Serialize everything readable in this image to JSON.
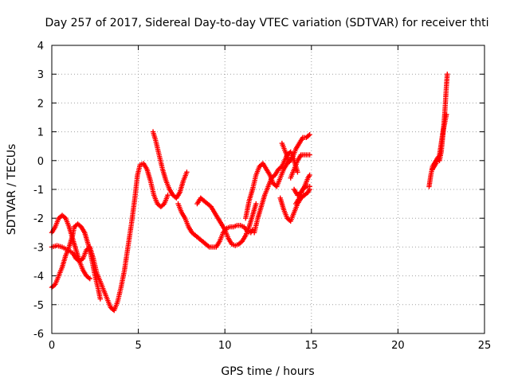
{
  "chart_data": {
    "type": "scatter",
    "title": "Day 257 of 2017, Sidereal Day-to-day VTEC variation (SDTVAR) for receiver thti",
    "xlabel": "GPS time / hours",
    "ylabel": "SDTVAR / TECUs",
    "xlim": [
      0,
      25
    ],
    "ylim": [
      -6,
      4
    ],
    "xticks": [
      0,
      5,
      10,
      15,
      20,
      25
    ],
    "yticks": [
      -6,
      -5,
      -4,
      -3,
      -2,
      -1,
      0,
      1,
      2,
      3,
      4
    ],
    "grid": true,
    "marker": "plus",
    "color": "#ff0000",
    "series": [
      {
        "points": [
          [
            0.0,
            -4.4
          ],
          [
            0.2,
            -4.3
          ],
          [
            0.4,
            -4.0
          ],
          [
            0.6,
            -3.7
          ],
          [
            0.8,
            -3.3
          ],
          [
            1.0,
            -3.0
          ],
          [
            1.2,
            -2.6
          ],
          [
            1.3,
            -2.3
          ],
          [
            1.5,
            -2.2
          ],
          [
            1.7,
            -2.3
          ],
          [
            1.9,
            -2.5
          ],
          [
            2.1,
            -2.9
          ],
          [
            2.3,
            -3.4
          ],
          [
            2.5,
            -4.0
          ],
          [
            2.7,
            -4.5
          ],
          [
            2.8,
            -4.8
          ]
        ]
      },
      {
        "points": [
          [
            0.0,
            -2.5
          ],
          [
            0.2,
            -2.3
          ],
          [
            0.4,
            -2.0
          ],
          [
            0.6,
            -1.9
          ],
          [
            0.8,
            -2.0
          ],
          [
            1.0,
            -2.3
          ],
          [
            1.2,
            -2.7
          ],
          [
            1.4,
            -3.1
          ],
          [
            1.6,
            -3.5
          ],
          [
            1.8,
            -3.8
          ],
          [
            2.0,
            -4.0
          ],
          [
            2.2,
            -4.1
          ]
        ]
      },
      {
        "points": [
          [
            0.0,
            -3.0
          ],
          [
            0.3,
            -2.95
          ],
          [
            0.6,
            -3.0
          ],
          [
            0.9,
            -3.1
          ],
          [
            1.2,
            -3.2
          ],
          [
            1.4,
            -3.4
          ],
          [
            1.6,
            -3.5
          ],
          [
            1.8,
            -3.4
          ],
          [
            2.0,
            -3.1
          ],
          [
            2.2,
            -3.0
          ],
          [
            2.4,
            -3.4
          ],
          [
            2.6,
            -3.9
          ],
          [
            2.8,
            -4.2
          ],
          [
            3.0,
            -4.5
          ],
          [
            3.2,
            -4.8
          ],
          [
            3.4,
            -5.1
          ],
          [
            3.6,
            -5.2
          ],
          [
            3.8,
            -4.9
          ],
          [
            4.0,
            -4.4
          ],
          [
            4.2,
            -3.8
          ],
          [
            4.4,
            -3.0
          ],
          [
            4.6,
            -2.2
          ],
          [
            4.8,
            -1.3
          ],
          [
            4.95,
            -0.5
          ],
          [
            5.1,
            -0.15
          ],
          [
            5.3,
            -0.1
          ],
          [
            5.5,
            -0.3
          ],
          [
            5.7,
            -0.7
          ],
          [
            5.9,
            -1.2
          ],
          [
            6.1,
            -1.5
          ],
          [
            6.3,
            -1.6
          ],
          [
            6.5,
            -1.5
          ],
          [
            6.7,
            -1.2
          ]
        ]
      },
      {
        "points": [
          [
            5.85,
            1.0
          ],
          [
            6.0,
            0.7
          ],
          [
            6.2,
            0.2
          ],
          [
            6.4,
            -0.3
          ],
          [
            6.6,
            -0.7
          ],
          [
            6.8,
            -1.0
          ],
          [
            7.0,
            -1.2
          ],
          [
            7.2,
            -1.3
          ],
          [
            7.4,
            -1.1
          ],
          [
            7.6,
            -0.7
          ],
          [
            7.8,
            -0.4
          ]
        ]
      },
      {
        "points": [
          [
            7.3,
            -1.5
          ],
          [
            7.5,
            -1.8
          ],
          [
            7.7,
            -2.0
          ],
          [
            7.9,
            -2.3
          ],
          [
            8.1,
            -2.5
          ],
          [
            8.3,
            -2.6
          ],
          [
            8.5,
            -2.7
          ],
          [
            8.7,
            -2.8
          ],
          [
            8.9,
            -2.9
          ],
          [
            9.1,
            -3.0
          ],
          [
            9.3,
            -3.0
          ],
          [
            9.5,
            -3.0
          ],
          [
            9.7,
            -2.8
          ],
          [
            9.9,
            -2.5
          ],
          [
            10.1,
            -2.35
          ],
          [
            10.3,
            -2.3
          ],
          [
            10.5,
            -2.3
          ],
          [
            10.7,
            -2.25
          ],
          [
            10.9,
            -2.25
          ],
          [
            11.1,
            -2.3
          ],
          [
            11.3,
            -2.45
          ],
          [
            11.5,
            -2.5
          ],
          [
            11.6,
            -2.4
          ]
        ]
      },
      {
        "points": [
          [
            8.4,
            -1.5
          ],
          [
            8.6,
            -1.3
          ],
          [
            8.8,
            -1.4
          ],
          [
            9.0,
            -1.5
          ],
          [
            9.2,
            -1.6
          ],
          [
            9.4,
            -1.8
          ],
          [
            9.6,
            -2.0
          ],
          [
            9.8,
            -2.2
          ],
          [
            10.0,
            -2.4
          ],
          [
            10.2,
            -2.7
          ],
          [
            10.4,
            -2.9
          ],
          [
            10.6,
            -2.95
          ],
          [
            10.8,
            -2.9
          ],
          [
            11.0,
            -2.8
          ],
          [
            11.2,
            -2.6
          ],
          [
            11.4,
            -2.3
          ],
          [
            11.6,
            -1.9
          ],
          [
            11.8,
            -1.5
          ]
        ]
      },
      {
        "points": [
          [
            11.2,
            -2.0
          ],
          [
            11.4,
            -1.4
          ],
          [
            11.6,
            -1.0
          ],
          [
            11.8,
            -0.5
          ],
          [
            12.0,
            -0.2
          ],
          [
            12.2,
            -0.1
          ],
          [
            12.4,
            -0.3
          ],
          [
            12.6,
            -0.5
          ],
          [
            12.8,
            -0.8
          ],
          [
            13.0,
            -0.9
          ],
          [
            13.2,
            -0.6
          ],
          [
            13.4,
            -0.3
          ],
          [
            13.6,
            -0.1
          ],
          [
            13.8,
            0.0
          ]
        ]
      },
      {
        "points": [
          [
            11.7,
            -2.5
          ],
          [
            11.9,
            -2.0
          ],
          [
            12.1,
            -1.6
          ],
          [
            12.3,
            -1.2
          ],
          [
            12.5,
            -0.9
          ],
          [
            12.7,
            -0.6
          ],
          [
            12.9,
            -0.5
          ],
          [
            13.1,
            -0.3
          ],
          [
            13.3,
            -0.2
          ],
          [
            13.6,
            0.2
          ],
          [
            13.8,
            0.3
          ],
          [
            14.0,
            0.0
          ],
          [
            14.2,
            -0.4
          ]
        ]
      },
      {
        "points": [
          [
            13.3,
            0.6
          ],
          [
            13.5,
            0.3
          ],
          [
            13.7,
            0.0
          ],
          [
            13.9,
            0.1
          ],
          [
            14.1,
            0.4
          ],
          [
            14.3,
            0.6
          ],
          [
            14.5,
            0.8
          ],
          [
            14.7,
            0.8
          ],
          [
            14.9,
            0.9
          ]
        ]
      },
      {
        "points": [
          [
            13.2,
            -1.3
          ],
          [
            13.4,
            -1.7
          ],
          [
            13.6,
            -2.0
          ],
          [
            13.8,
            -2.1
          ],
          [
            14.0,
            -1.8
          ],
          [
            14.2,
            -1.5
          ],
          [
            14.4,
            -1.3
          ],
          [
            14.6,
            -1.2
          ],
          [
            14.8,
            -1.1
          ],
          [
            14.9,
            -1.0
          ]
        ]
      },
      {
        "points": [
          [
            13.8,
            -0.6
          ],
          [
            14.0,
            -0.3
          ],
          [
            14.2,
            0.0
          ],
          [
            14.4,
            0.2
          ],
          [
            14.6,
            0.2
          ],
          [
            14.8,
            0.2
          ],
          [
            14.9,
            0.2
          ]
        ]
      },
      {
        "points": [
          [
            14.0,
            -1.0
          ],
          [
            14.2,
            -1.2
          ],
          [
            14.4,
            -1.1
          ],
          [
            14.6,
            -0.9
          ],
          [
            14.8,
            -0.6
          ],
          [
            14.9,
            -0.5
          ]
        ]
      },
      {
        "points": [
          [
            14.1,
            -1.5
          ],
          [
            14.3,
            -1.3
          ],
          [
            14.5,
            -1.0
          ],
          [
            14.7,
            -0.9
          ],
          [
            14.9,
            -0.9
          ]
        ]
      },
      {
        "points": [
          [
            21.8,
            -0.9
          ],
          [
            21.9,
            -0.5
          ],
          [
            22.0,
            -0.2
          ],
          [
            22.1,
            -0.1
          ],
          [
            22.2,
            0.0
          ],
          [
            22.3,
            0.1
          ],
          [
            22.4,
            0.0
          ],
          [
            22.5,
            0.3
          ],
          [
            22.6,
            0.9
          ],
          [
            22.7,
            1.6
          ],
          [
            22.75,
            2.1
          ],
          [
            22.8,
            2.6
          ],
          [
            22.85,
            3.0
          ]
        ]
      },
      {
        "points": [
          [
            22.0,
            -0.3
          ],
          [
            22.2,
            -0.1
          ],
          [
            22.4,
            0.2
          ],
          [
            22.5,
            0.6
          ],
          [
            22.6,
            1.0
          ],
          [
            22.7,
            1.3
          ],
          [
            22.8,
            1.6
          ]
        ]
      }
    ]
  }
}
